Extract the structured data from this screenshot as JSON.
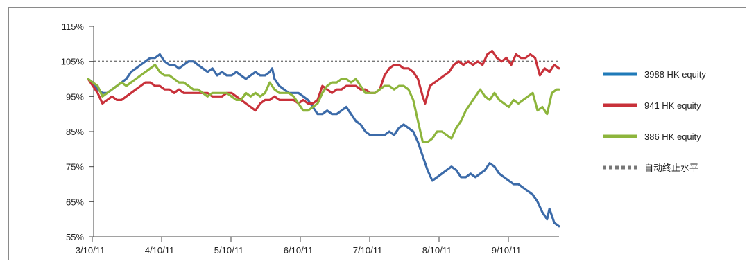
{
  "chart_data": {
    "type": "line",
    "title": "",
    "xlabel": "",
    "ylabel": "",
    "x_ticks": [
      "3/10/11",
      "4/10/11",
      "5/10/11",
      "6/10/11",
      "7/10/11",
      "8/10/11",
      "9/10/11"
    ],
    "y_ticks": [
      "115%",
      "105%",
      "95%",
      "85%",
      "75%",
      "65%",
      "55%"
    ],
    "ylim": [
      55,
      115
    ],
    "grid": false,
    "legend_position": "right",
    "reference_line": {
      "name": "自动终止水平",
      "value": 105,
      "color": "#777777",
      "style": "dotted"
    },
    "series": [
      {
        "name": "3988 HK equity",
        "color": "#3c6ba9",
        "legend_color": "#1f7ab8",
        "points": [
          [
            0,
            100
          ],
          [
            2,
            99
          ],
          [
            4,
            97
          ],
          [
            6,
            96
          ],
          [
            8,
            96
          ],
          [
            10,
            97
          ],
          [
            12,
            98
          ],
          [
            14,
            99
          ],
          [
            16,
            100
          ],
          [
            18,
            102
          ],
          [
            20,
            103
          ],
          [
            22,
            104
          ],
          [
            24,
            105
          ],
          [
            26,
            106
          ],
          [
            28,
            106
          ],
          [
            30,
            107
          ],
          [
            32,
            105
          ],
          [
            34,
            104
          ],
          [
            36,
            104
          ],
          [
            38,
            103
          ],
          [
            40,
            104
          ],
          [
            42,
            105
          ],
          [
            44,
            105
          ],
          [
            46,
            104
          ],
          [
            48,
            103
          ],
          [
            50,
            102
          ],
          [
            52,
            103
          ],
          [
            54,
            101
          ],
          [
            56,
            102
          ],
          [
            58,
            101
          ],
          [
            60,
            101
          ],
          [
            62,
            102
          ],
          [
            64,
            101
          ],
          [
            66,
            100
          ],
          [
            68,
            101
          ],
          [
            70,
            102
          ],
          [
            72,
            101
          ],
          [
            74,
            101
          ],
          [
            76,
            102
          ],
          [
            77,
            103
          ],
          [
            78,
            100
          ],
          [
            80,
            98
          ],
          [
            82,
            97
          ],
          [
            84,
            96
          ],
          [
            86,
            96
          ],
          [
            88,
            96
          ],
          [
            90,
            95
          ],
          [
            92,
            94
          ],
          [
            94,
            92
          ],
          [
            96,
            90
          ],
          [
            98,
            90
          ],
          [
            100,
            91
          ],
          [
            102,
            90
          ],
          [
            104,
            90
          ],
          [
            106,
            91
          ],
          [
            108,
            92
          ],
          [
            110,
            90
          ],
          [
            112,
            88
          ],
          [
            114,
            87
          ],
          [
            116,
            85
          ],
          [
            118,
            84
          ],
          [
            120,
            84
          ],
          [
            122,
            84
          ],
          [
            124,
            84
          ],
          [
            126,
            85
          ],
          [
            128,
            84
          ],
          [
            130,
            86
          ],
          [
            132,
            87
          ],
          [
            134,
            86
          ],
          [
            136,
            85
          ],
          [
            138,
            82
          ],
          [
            140,
            78
          ],
          [
            142,
            74
          ],
          [
            144,
            71
          ],
          [
            146,
            72
          ],
          [
            148,
            73
          ],
          [
            150,
            74
          ],
          [
            152,
            75
          ],
          [
            154,
            74
          ],
          [
            156,
            72
          ],
          [
            158,
            72
          ],
          [
            160,
            73
          ],
          [
            162,
            72
          ],
          [
            164,
            73
          ],
          [
            166,
            74
          ],
          [
            168,
            76
          ],
          [
            170,
            75
          ],
          [
            172,
            73
          ],
          [
            174,
            72
          ],
          [
            176,
            71
          ],
          [
            178,
            70
          ],
          [
            180,
            70
          ],
          [
            182,
            69
          ],
          [
            184,
            68
          ],
          [
            186,
            67
          ],
          [
            188,
            65
          ],
          [
            190,
            62
          ],
          [
            192,
            60
          ],
          [
            193,
            63
          ],
          [
            195,
            59
          ],
          [
            197,
            58
          ]
        ]
      },
      {
        "name": "941 HK equity",
        "color": "#c8313a",
        "legend_color": "#c8313a",
        "points": [
          [
            0,
            100
          ],
          [
            2,
            98
          ],
          [
            4,
            96
          ],
          [
            6,
            93
          ],
          [
            8,
            94
          ],
          [
            10,
            95
          ],
          [
            12,
            94
          ],
          [
            14,
            94
          ],
          [
            16,
            95
          ],
          [
            18,
            96
          ],
          [
            20,
            97
          ],
          [
            22,
            98
          ],
          [
            24,
            99
          ],
          [
            26,
            99
          ],
          [
            28,
            98
          ],
          [
            30,
            98
          ],
          [
            32,
            97
          ],
          [
            34,
            97
          ],
          [
            36,
            96
          ],
          [
            38,
            97
          ],
          [
            40,
            96
          ],
          [
            42,
            96
          ],
          [
            44,
            96
          ],
          [
            46,
            96
          ],
          [
            48,
            96
          ],
          [
            50,
            96
          ],
          [
            52,
            95
          ],
          [
            54,
            95
          ],
          [
            56,
            95
          ],
          [
            58,
            96
          ],
          [
            60,
            96
          ],
          [
            62,
            95
          ],
          [
            64,
            94
          ],
          [
            66,
            93
          ],
          [
            68,
            92
          ],
          [
            70,
            91
          ],
          [
            72,
            93
          ],
          [
            74,
            94
          ],
          [
            76,
            94
          ],
          [
            78,
            95
          ],
          [
            80,
            94
          ],
          [
            82,
            94
          ],
          [
            84,
            94
          ],
          [
            86,
            94
          ],
          [
            88,
            93
          ],
          [
            90,
            94
          ],
          [
            92,
            93
          ],
          [
            94,
            93
          ],
          [
            96,
            94
          ],
          [
            98,
            98
          ],
          [
            100,
            97
          ],
          [
            102,
            96
          ],
          [
            104,
            97
          ],
          [
            106,
            97
          ],
          [
            108,
            98
          ],
          [
            110,
            98
          ],
          [
            112,
            98
          ],
          [
            114,
            97
          ],
          [
            116,
            97
          ],
          [
            118,
            96
          ],
          [
            120,
            96
          ],
          [
            122,
            97
          ],
          [
            124,
            101
          ],
          [
            126,
            103
          ],
          [
            128,
            104
          ],
          [
            130,
            104
          ],
          [
            132,
            103
          ],
          [
            134,
            103
          ],
          [
            136,
            102
          ],
          [
            138,
            100
          ],
          [
            140,
            95
          ],
          [
            141,
            93
          ],
          [
            143,
            98
          ],
          [
            145,
            99
          ],
          [
            147,
            100
          ],
          [
            149,
            101
          ],
          [
            151,
            102
          ],
          [
            153,
            104
          ],
          [
            155,
            105
          ],
          [
            157,
            104
          ],
          [
            159,
            105
          ],
          [
            161,
            104
          ],
          [
            163,
            105
          ],
          [
            165,
            104
          ],
          [
            167,
            107
          ],
          [
            169,
            108
          ],
          [
            171,
            106
          ],
          [
            173,
            105
          ],
          [
            175,
            106
          ],
          [
            177,
            104
          ],
          [
            179,
            107
          ],
          [
            181,
            106
          ],
          [
            183,
            106
          ],
          [
            185,
            107
          ],
          [
            187,
            106
          ],
          [
            189,
            101
          ],
          [
            191,
            103
          ],
          [
            193,
            102
          ],
          [
            195,
            104
          ],
          [
            197,
            103
          ]
        ]
      },
      {
        "name": "386 HK equity",
        "color": "#8db53c",
        "legend_color": "#8db53c",
        "points": [
          [
            0,
            100
          ],
          [
            2,
            99
          ],
          [
            4,
            98
          ],
          [
            6,
            95
          ],
          [
            8,
            96
          ],
          [
            10,
            97
          ],
          [
            12,
            98
          ],
          [
            14,
            99
          ],
          [
            16,
            98
          ],
          [
            18,
            99
          ],
          [
            20,
            100
          ],
          [
            22,
            101
          ],
          [
            24,
            102
          ],
          [
            26,
            103
          ],
          [
            28,
            104
          ],
          [
            30,
            102
          ],
          [
            32,
            101
          ],
          [
            34,
            101
          ],
          [
            36,
            100
          ],
          [
            38,
            99
          ],
          [
            40,
            99
          ],
          [
            42,
            98
          ],
          [
            44,
            97
          ],
          [
            46,
            97
          ],
          [
            48,
            96
          ],
          [
            50,
            95
          ],
          [
            52,
            96
          ],
          [
            54,
            96
          ],
          [
            56,
            96
          ],
          [
            58,
            96
          ],
          [
            60,
            95
          ],
          [
            62,
            94
          ],
          [
            64,
            94
          ],
          [
            66,
            96
          ],
          [
            68,
            95
          ],
          [
            70,
            96
          ],
          [
            72,
            95
          ],
          [
            74,
            96
          ],
          [
            76,
            99
          ],
          [
            78,
            97
          ],
          [
            80,
            96
          ],
          [
            82,
            96
          ],
          [
            84,
            96
          ],
          [
            86,
            95
          ],
          [
            88,
            93
          ],
          [
            90,
            91
          ],
          [
            92,
            91
          ],
          [
            94,
            92
          ],
          [
            96,
            93
          ],
          [
            98,
            96
          ],
          [
            100,
            98
          ],
          [
            102,
            99
          ],
          [
            104,
            99
          ],
          [
            106,
            100
          ],
          [
            108,
            100
          ],
          [
            110,
            99
          ],
          [
            112,
            100
          ],
          [
            114,
            98
          ],
          [
            116,
            96
          ],
          [
            118,
            96
          ],
          [
            120,
            96
          ],
          [
            122,
            97
          ],
          [
            124,
            98
          ],
          [
            126,
            98
          ],
          [
            128,
            97
          ],
          [
            130,
            98
          ],
          [
            132,
            98
          ],
          [
            134,
            97
          ],
          [
            136,
            94
          ],
          [
            138,
            88
          ],
          [
            140,
            82
          ],
          [
            142,
            82
          ],
          [
            144,
            83
          ],
          [
            146,
            85
          ],
          [
            148,
            85
          ],
          [
            150,
            84
          ],
          [
            152,
            83
          ],
          [
            154,
            86
          ],
          [
            156,
            88
          ],
          [
            158,
            91
          ],
          [
            160,
            93
          ],
          [
            162,
            95
          ],
          [
            164,
            97
          ],
          [
            166,
            95
          ],
          [
            168,
            94
          ],
          [
            170,
            96
          ],
          [
            172,
            94
          ],
          [
            174,
            93
          ],
          [
            176,
            92
          ],
          [
            178,
            94
          ],
          [
            180,
            93
          ],
          [
            182,
            94
          ],
          [
            184,
            95
          ],
          [
            186,
            96
          ],
          [
            188,
            91
          ],
          [
            190,
            92
          ],
          [
            192,
            90
          ],
          [
            194,
            96
          ],
          [
            196,
            97
          ],
          [
            197,
            97
          ]
        ]
      }
    ]
  }
}
